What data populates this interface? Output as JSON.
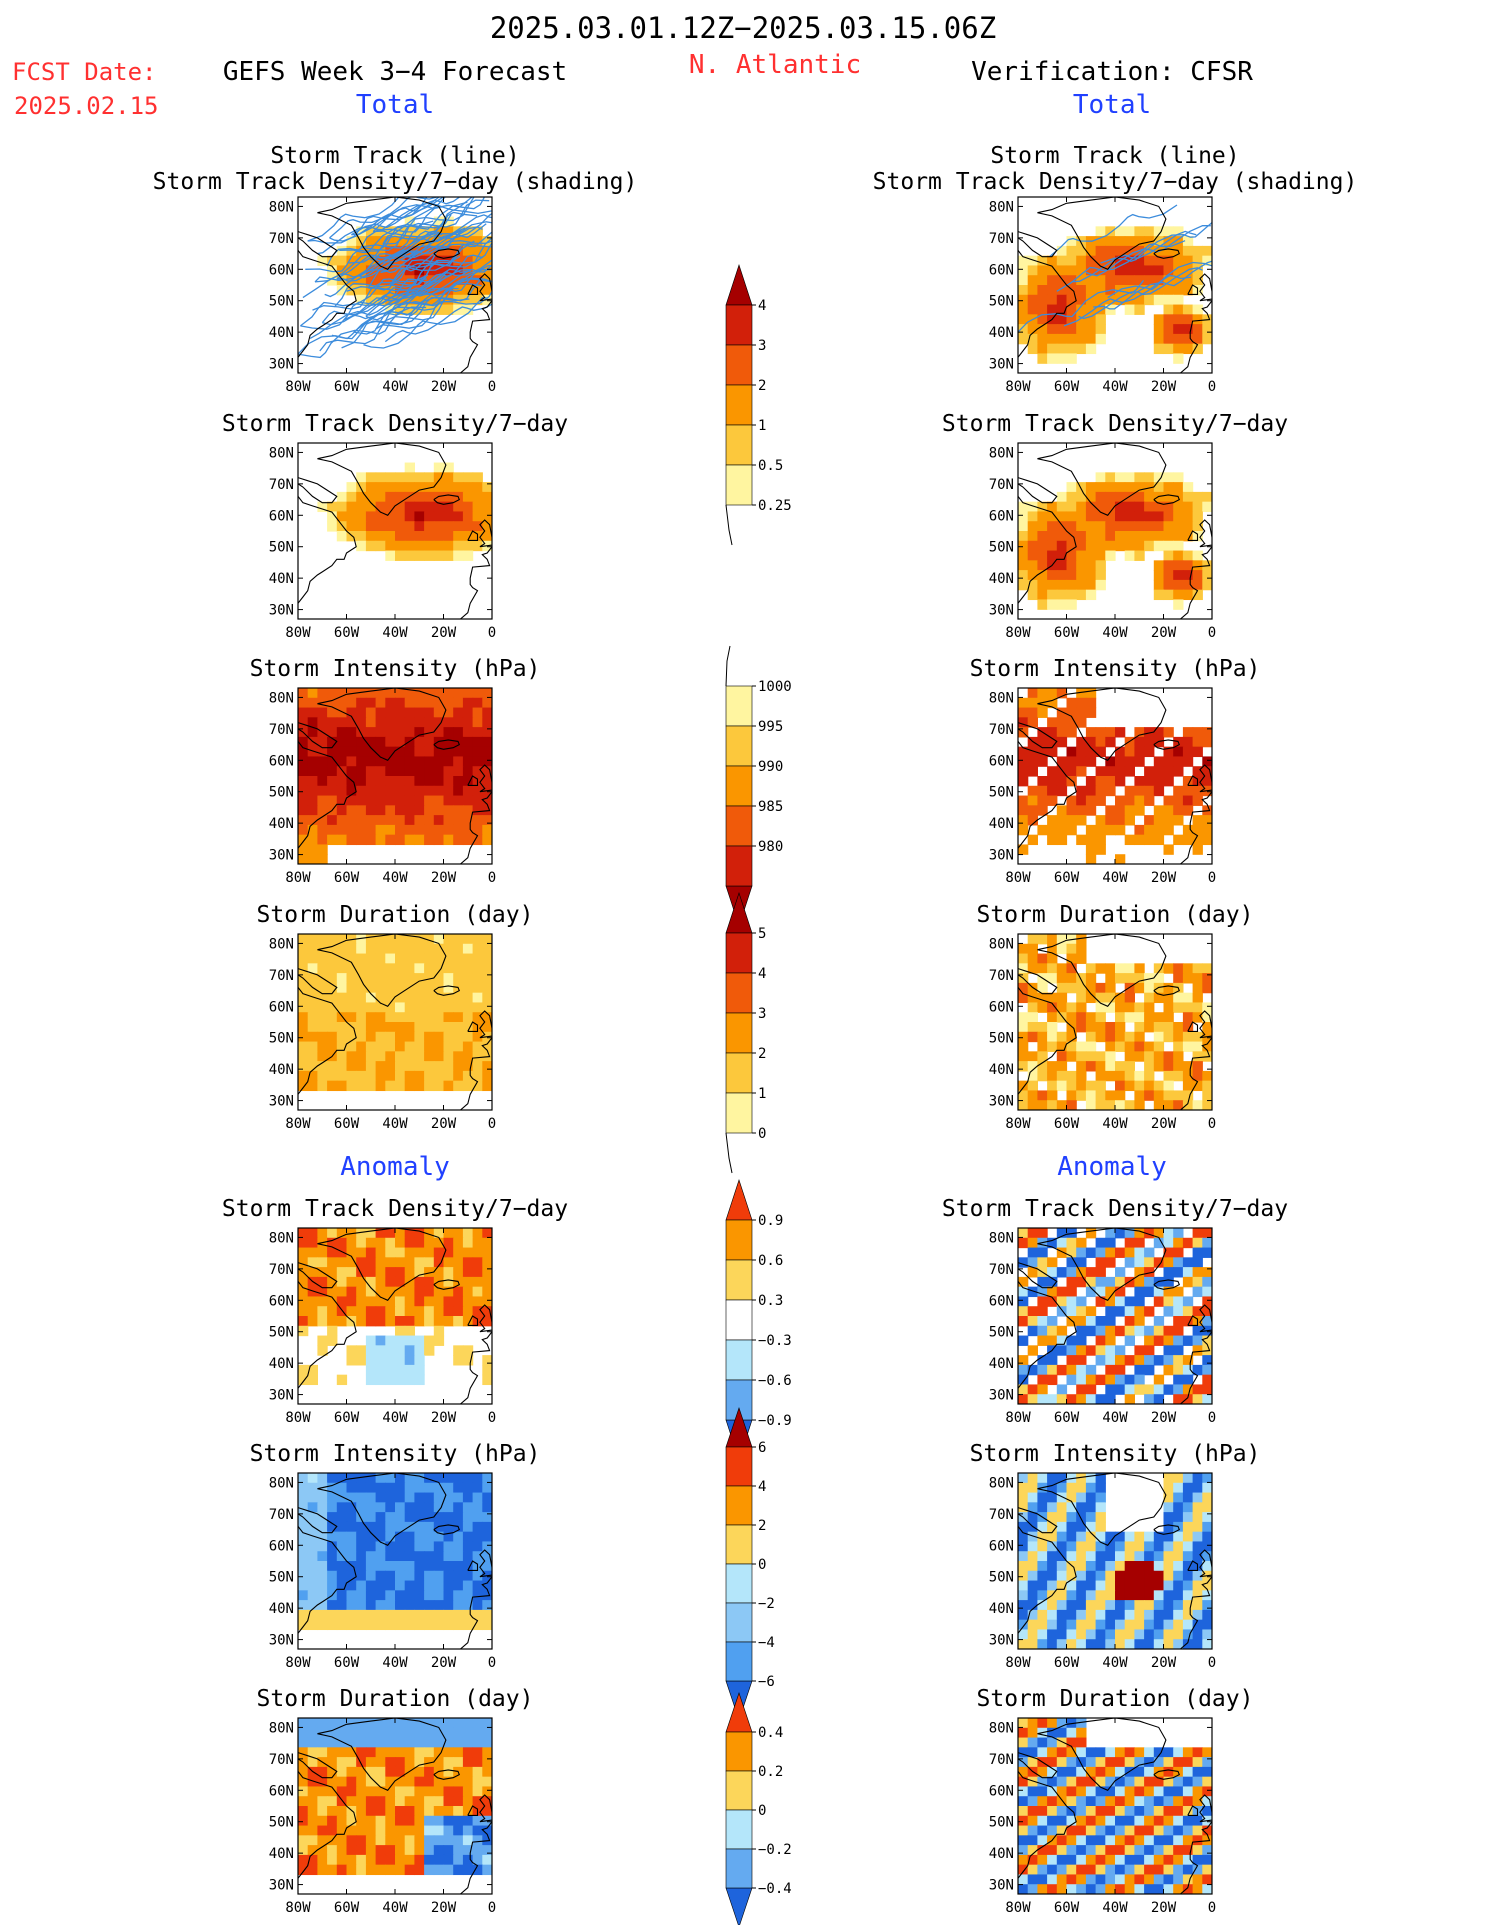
{
  "header": {
    "period": "2025.03.01.12Z−2025.03.15.06Z",
    "region": "N. Atlantic",
    "fcst_label": "FCST Date:",
    "fcst_date": "2025.02.15",
    "left_title": "GEFS Week 3−4 Forecast",
    "right_title": "Verification: CFSR",
    "section_total": "Total",
    "section_anomaly": "Anomaly"
  },
  "axes": {
    "lat_ticks": [
      "80N",
      "70N",
      "60N",
      "50N",
      "40N",
      "30N"
    ],
    "lon_ticks": [
      "80W",
      "60W",
      "40W",
      "20W",
      "0"
    ]
  },
  "panels": {
    "total": [
      {
        "id": "track",
        "title_line1": "Storm Track (line)",
        "title_line2": "Storm Track Density/7−day (shading)"
      },
      {
        "id": "density",
        "title_line1": "Storm Track Density/7−day",
        "title_line2": ""
      },
      {
        "id": "intensity",
        "title_line1": "Storm Intensity (hPa)",
        "title_line2": ""
      },
      {
        "id": "duration",
        "title_line1": "Storm Duration (day)",
        "title_line2": ""
      }
    ],
    "anomaly": [
      {
        "id": "density_anom",
        "title_line1": "Storm Track Density/7−day",
        "title_line2": ""
      },
      {
        "id": "intensity_anom",
        "title_line1": "Storm Intensity (hPa)",
        "title_line2": ""
      },
      {
        "id": "duration_anom",
        "title_line1": "Storm Duration (day)",
        "title_line2": ""
      }
    ]
  },
  "colorbars": [
    {
      "id": "density",
      "labels": [
        "4",
        "3",
        "2",
        "1",
        "0.5",
        "0.25"
      ],
      "colors": [
        "#a50000",
        "#d2200a",
        "#f05a0a",
        "#fa9600",
        "#fcc83c",
        "#fff5a0"
      ]
    },
    {
      "id": "intensity",
      "labels": [
        "1000",
        "995",
        "990",
        "985",
        "980"
      ],
      "colors": [
        "#fff5a0",
        "#fcc83c",
        "#fa9600",
        "#f05a0a",
        "#d2200a",
        "#a50000"
      ]
    },
    {
      "id": "duration",
      "labels": [
        "5",
        "4",
        "3",
        "2",
        "1",
        "0"
      ],
      "colors": [
        "#a50000",
        "#d2200a",
        "#f05a0a",
        "#fa9600",
        "#fcc83c",
        "#fff5a0"
      ]
    },
    {
      "id": "density_anom",
      "labels": [
        "0.9",
        "0.6",
        "0.3",
        "−0.3",
        "−0.6",
        "−0.9"
      ],
      "colors": [
        "#f03c0a",
        "#fa9600",
        "#fcd65a",
        "#ffffff",
        "#b4e6fa",
        "#64aaf0",
        "#1e64dc"
      ]
    },
    {
      "id": "intensity_anom",
      "labels": [
        "6",
        "4",
        "2",
        "0",
        "−2",
        "−4",
        "−6"
      ],
      "colors": [
        "#a50000",
        "#f03c0a",
        "#fa9600",
        "#fcd65a",
        "#b4e6fa",
        "#8cc8f5",
        "#50a0f0",
        "#1e64dc"
      ]
    },
    {
      "id": "duration_anom",
      "labels": [
        "0.4",
        "0.2",
        "0",
        "−0.2",
        "−0.4"
      ],
      "colors": [
        "#f03c0a",
        "#fa9600",
        "#fcd65a",
        "#b4e6fa",
        "#64aaf0",
        "#1e64dc"
      ]
    }
  ],
  "colors": {
    "title_red": "#ff3030",
    "section_blue": "#2040ff",
    "track_line": "#3c8cdc"
  }
}
